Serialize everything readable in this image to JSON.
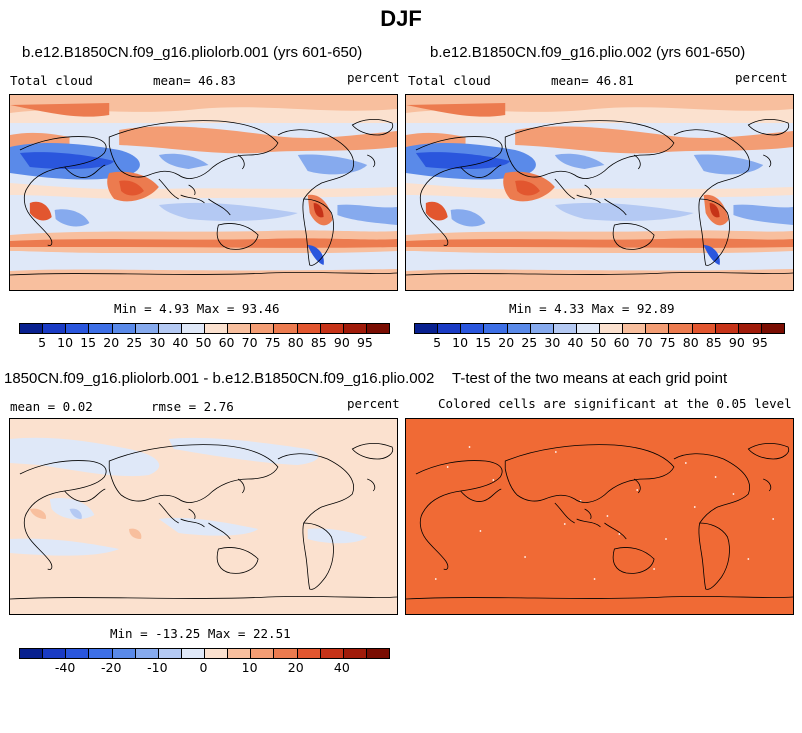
{
  "page_title": "DJF",
  "colors": {
    "scale": [
      "#08208f",
      "#1a3bc4",
      "#2a56dd",
      "#3d6fe6",
      "#5a8ae9",
      "#86aaee",
      "#b4c9f3",
      "#dfe8f8",
      "#fbe1cf",
      "#f8bf9e",
      "#f39d74",
      "#ec7b4f",
      "#e2562f",
      "#c63318",
      "#a01b0a",
      "#7a0d02"
    ],
    "ttest_fill": "#f06a35"
  },
  "panels": {
    "top_left": {
      "title": "b.e12.B1850CN.f09_g16.pliolorb.001 (yrs 601-650)",
      "left_label": "Total cloud",
      "mean_label": "mean=  46.83",
      "units": "percent",
      "minmax": "Min =   4.93 Max =  93.46"
    },
    "top_right": {
      "title": "b.e12.B1850CN.f09_g16.plio.002 (yrs 601-650)",
      "left_label": "Total cloud",
      "mean_label": "mean=  46.81",
      "units": "percent",
      "minmax": "Min =   4.33 Max =  92.89"
    },
    "bottom_left": {
      "title": "1850CN.f09_g16.pliolorb.001 - b.e12.B1850CN.f09_g16.plio.002",
      "mean_label": "mean =   0.02",
      "rmse_label": "rmse =   2.76",
      "units": "percent",
      "minmax": "Min = -13.25 Max =  22.51"
    },
    "bottom_right": {
      "title": "T-test of the two means at each grid point",
      "subtitle": "Colored cells are significant at the 0.05 level"
    }
  },
  "colorbar_top": [
    "5",
    "10",
    "15",
    "20",
    "25",
    "30",
    "40",
    "50",
    "60",
    "70",
    "75",
    "80",
    "85",
    "90",
    "95"
  ],
  "colorbar_diff": [
    "-40",
    "-20",
    "-10",
    "0",
    "10",
    "20",
    "40"
  ]
}
